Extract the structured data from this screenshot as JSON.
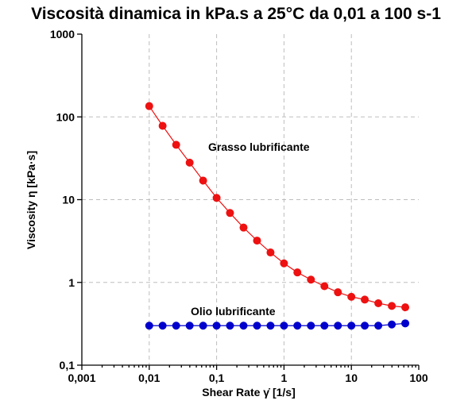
{
  "chart_data": {
    "type": "scatter",
    "title": "Viscosità dinamica in kPa.s a 25°C da 0,01 a 100 s-1",
    "xlabel": "Shear Rate γ̇ [1/s]",
    "ylabel": "Viscosity η [kPa·s]",
    "xscale": "log",
    "yscale": "log",
    "xlim": [
      0.001,
      100
    ],
    "ylim": [
      0.1,
      1000
    ],
    "grid": true,
    "x_ticks": [
      "0,001",
      "0,01",
      "0,1",
      "1",
      "10",
      "100"
    ],
    "y_ticks": [
      "0,1",
      "1",
      "10",
      "100",
      "1000"
    ],
    "series": [
      {
        "name": "Grasso lubrificante",
        "color": "#ee1111",
        "x": [
          0.01,
          0.0158,
          0.0251,
          0.0398,
          0.0631,
          0.1,
          0.158,
          0.251,
          0.398,
          0.631,
          1,
          1.58,
          2.51,
          3.98,
          6.31,
          10,
          15.8,
          25.1,
          39.8,
          63.1
        ],
        "y": [
          135,
          78,
          46,
          28,
          17,
          10.5,
          6.9,
          4.6,
          3.2,
          2.3,
          1.7,
          1.32,
          1.08,
          0.9,
          0.76,
          0.67,
          0.62,
          0.56,
          0.52,
          0.5
        ]
      },
      {
        "name": "Olio lubrificante",
        "color": "#0000cc",
        "x": [
          0.01,
          0.0158,
          0.0251,
          0.0398,
          0.0631,
          0.1,
          0.158,
          0.251,
          0.398,
          0.631,
          1,
          1.58,
          2.51,
          3.98,
          6.31,
          10,
          15.8,
          25.1,
          39.8,
          63.1
        ],
        "y": [
          0.3,
          0.3,
          0.3,
          0.3,
          0.3,
          0.3,
          0.3,
          0.3,
          0.3,
          0.3,
          0.3,
          0.3,
          0.3,
          0.3,
          0.3,
          0.3,
          0.3,
          0.3,
          0.31,
          0.32
        ]
      }
    ]
  }
}
